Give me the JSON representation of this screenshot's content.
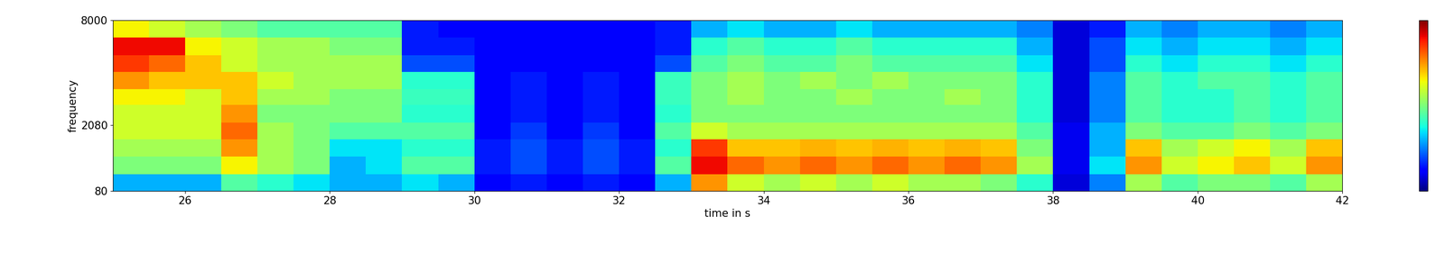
{
  "chart_data": {
    "type": "heatmap",
    "xlabel": "time in s",
    "ylabel": "frequency",
    "color": "jet",
    "xlim": [
      25,
      42
    ],
    "xticks": [
      26,
      28,
      30,
      32,
      34,
      36,
      38,
      40,
      42
    ],
    "ylim": [
      80,
      8000
    ],
    "yticks": [
      80,
      2080,
      8000
    ],
    "x_edges": [
      25,
      25.5,
      26,
      26.5,
      27,
      27.5,
      28,
      28.5,
      29,
      29.5,
      30,
      30.5,
      31,
      31.5,
      32,
      32.5,
      33,
      33.5,
      34,
      34.5,
      35,
      35.5,
      36,
      36.5,
      37,
      37.5,
      38,
      38.5,
      39,
      39.5,
      40,
      40.5,
      41,
      41.5,
      42
    ],
    "y_edges": [
      80,
      400,
      900,
      1500,
      2200,
      3000,
      3800,
      4750,
      5750,
      6850,
      8000
    ],
    "cells": [
      [
        0.3,
        0.3,
        0.3,
        0.45,
        0.4,
        0.35,
        0.3,
        0.3,
        0.35,
        0.3,
        0.12,
        0.15,
        0.12,
        0.15,
        0.12,
        0.3,
        0.75,
        0.6,
        0.55,
        0.6,
        0.55,
        0.6,
        0.55,
        0.55,
        0.5,
        0.4,
        0.08,
        0.25,
        0.55,
        0.45,
        0.5,
        0.5,
        0.45,
        0.55
      ],
      [
        0.5,
        0.5,
        0.5,
        0.65,
        0.55,
        0.5,
        0.3,
        0.35,
        0.45,
        0.45,
        0.15,
        0.2,
        0.15,
        0.2,
        0.15,
        0.45,
        0.9,
        0.8,
        0.75,
        0.8,
        0.75,
        0.8,
        0.75,
        0.8,
        0.75,
        0.55,
        0.1,
        0.35,
        0.75,
        0.6,
        0.65,
        0.7,
        0.6,
        0.75
      ],
      [
        0.55,
        0.55,
        0.55,
        0.75,
        0.55,
        0.5,
        0.35,
        0.35,
        0.4,
        0.4,
        0.15,
        0.2,
        0.15,
        0.2,
        0.15,
        0.4,
        0.85,
        0.7,
        0.7,
        0.72,
        0.7,
        0.72,
        0.7,
        0.72,
        0.7,
        0.5,
        0.1,
        0.3,
        0.7,
        0.55,
        0.6,
        0.65,
        0.55,
        0.7
      ],
      [
        0.6,
        0.6,
        0.6,
        0.8,
        0.55,
        0.5,
        0.45,
        0.45,
        0.45,
        0.45,
        0.12,
        0.18,
        0.12,
        0.18,
        0.12,
        0.45,
        0.6,
        0.55,
        0.55,
        0.55,
        0.55,
        0.55,
        0.55,
        0.55,
        0.55,
        0.45,
        0.1,
        0.3,
        0.5,
        0.45,
        0.45,
        0.5,
        0.45,
        0.5
      ],
      [
        0.6,
        0.6,
        0.6,
        0.75,
        0.5,
        0.5,
        0.5,
        0.5,
        0.4,
        0.4,
        0.12,
        0.15,
        0.12,
        0.15,
        0.12,
        0.4,
        0.5,
        0.5,
        0.5,
        0.5,
        0.5,
        0.5,
        0.5,
        0.5,
        0.5,
        0.4,
        0.08,
        0.25,
        0.45,
        0.4,
        0.4,
        0.45,
        0.4,
        0.45
      ],
      [
        0.65,
        0.65,
        0.6,
        0.7,
        0.55,
        0.55,
        0.5,
        0.5,
        0.42,
        0.42,
        0.12,
        0.15,
        0.12,
        0.15,
        0.12,
        0.42,
        0.5,
        0.55,
        0.5,
        0.5,
        0.55,
        0.5,
        0.5,
        0.55,
        0.5,
        0.4,
        0.08,
        0.25,
        0.45,
        0.4,
        0.4,
        0.45,
        0.4,
        0.45
      ],
      [
        0.75,
        0.7,
        0.7,
        0.7,
        0.6,
        0.55,
        0.55,
        0.55,
        0.4,
        0.4,
        0.12,
        0.15,
        0.12,
        0.15,
        0.12,
        0.42,
        0.5,
        0.55,
        0.5,
        0.55,
        0.5,
        0.55,
        0.5,
        0.5,
        0.5,
        0.4,
        0.08,
        0.25,
        0.45,
        0.4,
        0.45,
        0.45,
        0.4,
        0.45
      ],
      [
        0.85,
        0.8,
        0.7,
        0.6,
        0.55,
        0.55,
        0.55,
        0.55,
        0.2,
        0.2,
        0.12,
        0.12,
        0.12,
        0.12,
        0.12,
        0.2,
        0.45,
        0.5,
        0.45,
        0.45,
        0.5,
        0.45,
        0.45,
        0.45,
        0.45,
        0.35,
        0.08,
        0.2,
        0.4,
        0.35,
        0.4,
        0.4,
        0.35,
        0.4
      ],
      [
        0.9,
        0.9,
        0.65,
        0.6,
        0.55,
        0.55,
        0.5,
        0.5,
        0.15,
        0.15,
        0.12,
        0.12,
        0.12,
        0.12,
        0.12,
        0.15,
        0.4,
        0.45,
        0.4,
        0.4,
        0.45,
        0.4,
        0.4,
        0.4,
        0.4,
        0.3,
        0.08,
        0.2,
        0.35,
        0.3,
        0.35,
        0.35,
        0.3,
        0.35
      ],
      [
        0.65,
        0.6,
        0.55,
        0.5,
        0.45,
        0.45,
        0.45,
        0.45,
        0.15,
        0.12,
        0.12,
        0.12,
        0.12,
        0.12,
        0.12,
        0.15,
        0.3,
        0.35,
        0.3,
        0.3,
        0.35,
        0.3,
        0.3,
        0.3,
        0.3,
        0.25,
        0.08,
        0.15,
        0.3,
        0.25,
        0.3,
        0.3,
        0.25,
        0.3
      ]
    ],
    "colorbar": {
      "range": [
        0,
        1
      ],
      "ticks": []
    }
  }
}
